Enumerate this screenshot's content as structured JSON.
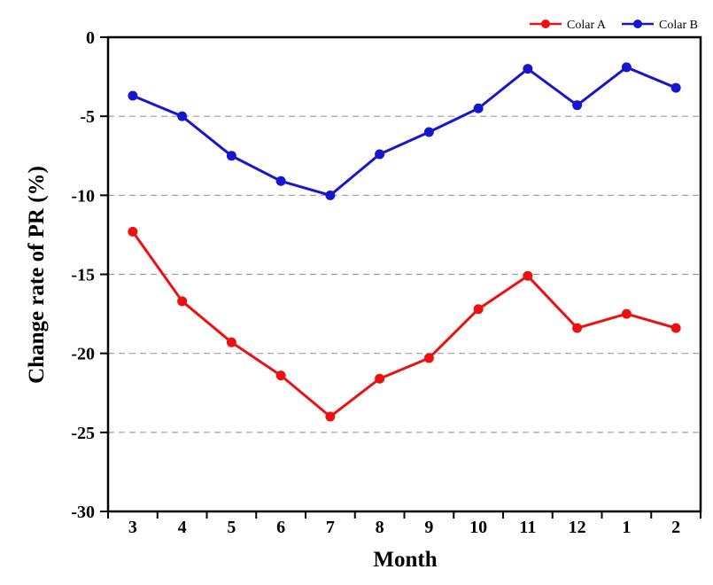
{
  "chart_data": {
    "type": "line",
    "title": "",
    "xlabel": "Month",
    "ylabel": "Change rate of PR (%)",
    "categories": [
      "3",
      "4",
      "5",
      "6",
      "7",
      "8",
      "9",
      "10",
      "11",
      "12",
      "1",
      "2"
    ],
    "series": [
      {
        "name": "Colar A",
        "color": "#ee1010",
        "values": [
          -12.3,
          -16.7,
          -19.3,
          -21.4,
          -24.0,
          -21.6,
          -20.3,
          -17.2,
          -15.1,
          -18.4,
          -17.5,
          -18.4
        ]
      },
      {
        "name": "Colar B",
        "color": "#1616cf",
        "values": [
          -3.7,
          -5.0,
          -7.5,
          -9.1,
          -10.0,
          -7.4,
          -6.0,
          -4.5,
          -2.0,
          -4.3,
          -1.9,
          -3.2
        ]
      }
    ],
    "ylim": [
      -30,
      0
    ],
    "yticks": [
      0,
      -5,
      -10,
      -15,
      -20,
      -25,
      -30
    ],
    "grid": "dashed-horizontal",
    "legend_position": "top-right",
    "marker": "circle",
    "background_color": "#ffffff",
    "axis_color": "#000000"
  }
}
